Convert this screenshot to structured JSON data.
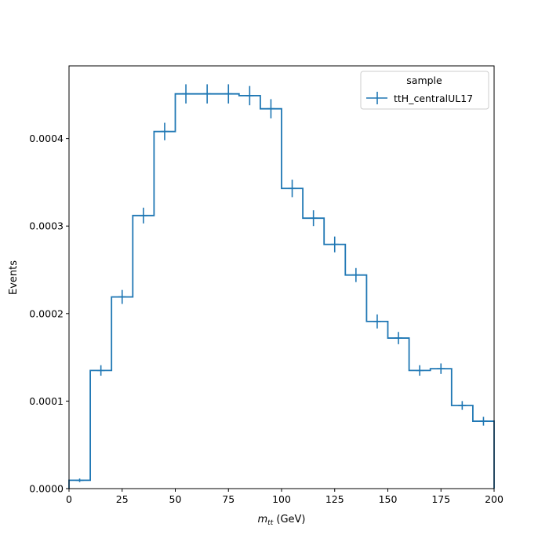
{
  "chart_data": {
    "type": "step-histogram",
    "title": "",
    "xlabel": "m",
    "xlabel_sub": "tt",
    "xlabel_unit": " (GeV)",
    "ylabel": "Events",
    "xlim": [
      0,
      200
    ],
    "ylim": [
      0,
      0.000483
    ],
    "x_ticks": [
      0,
      25,
      50,
      75,
      100,
      125,
      150,
      175,
      200
    ],
    "x_tick_labels": [
      "0",
      "25",
      "50",
      "75",
      "100",
      "125",
      "150",
      "175",
      "200"
    ],
    "y_ticks": [
      0,
      0.0001,
      0.0002,
      0.0003,
      0.0004
    ],
    "y_tick_labels": [
      "0.0000",
      "0.0001",
      "0.0002",
      "0.0003",
      "0.0004"
    ],
    "grid": false,
    "legend": {
      "title": "sample",
      "position": "top-right",
      "entries": [
        "ttH_centralUL17"
      ]
    },
    "series": [
      {
        "name": "ttH_centralUL17",
        "color": "#1f77b4",
        "bin_edges": [
          0,
          10,
          20,
          30,
          40,
          50,
          60,
          70,
          80,
          90,
          100,
          110,
          120,
          130,
          140,
          150,
          160,
          170,
          180,
          190,
          200
        ],
        "values": [
          9.5e-06,
          0.000135,
          0.000219,
          0.000312,
          0.000408,
          0.000451,
          0.000451,
          0.000451,
          0.000449,
          0.000434,
          0.000343,
          0.000309,
          0.000279,
          0.000244,
          0.000191,
          0.000172,
          0.000135,
          0.000137,
          9.5e-05,
          7.7e-05
        ],
        "errors": [
          2e-06,
          6e-06,
          8e-06,
          9e-06,
          1e-05,
          1.1e-05,
          1.1e-05,
          1.1e-05,
          1.1e-05,
          1.1e-05,
          1e-05,
          9e-06,
          9e-06,
          8e-06,
          8e-06,
          7e-06,
          6e-06,
          6e-06,
          5e-06,
          5e-06
        ]
      }
    ]
  }
}
